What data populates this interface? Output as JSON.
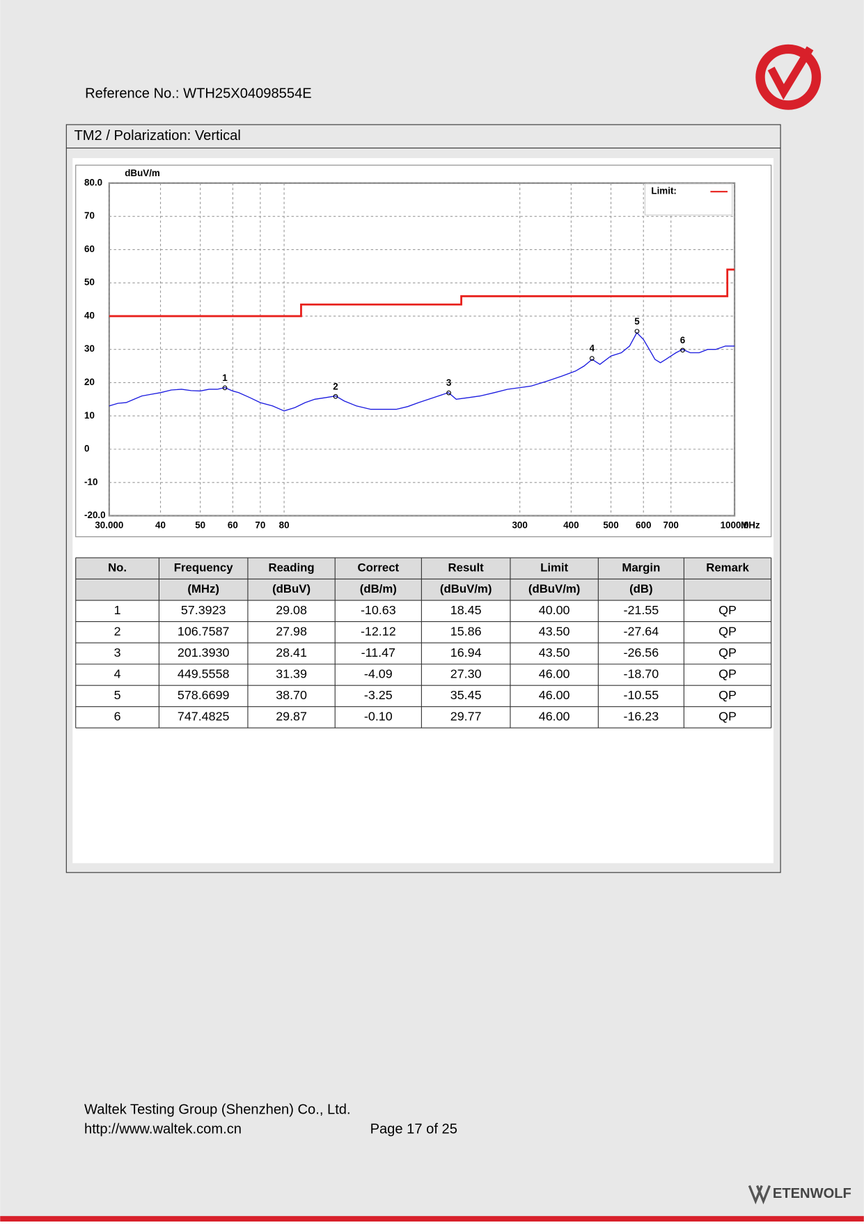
{
  "header": {
    "reference": "Reference No.: WTH25X04098554E"
  },
  "section": {
    "title": "TM2 / Polarization: Vertical"
  },
  "chart_data": {
    "type": "line",
    "ylabel": "dBuV/m",
    "xlabel": "MHz",
    "xscale": "log",
    "grid": true,
    "legend": "top-right",
    "xlim": [
      30,
      1000
    ],
    "ylim": [
      -20,
      80
    ],
    "xticks": [
      {
        "value": 30,
        "label": "30.000"
      },
      40,
      50,
      60,
      70,
      80,
      300,
      400,
      500,
      600,
      700,
      {
        "value": 1000,
        "label": "1000.0"
      }
    ],
    "yticks": [
      {
        "value": 80,
        "label": "80.0"
      },
      70,
      60,
      50,
      40,
      30,
      20,
      10,
      0,
      -10,
      {
        "value": -20,
        "label": "-20.0"
      }
    ],
    "series": [
      {
        "name": "Limit:",
        "color": "#e8201c",
        "x": [
          30,
          88,
          88,
          216,
          216,
          960,
          960,
          1000
        ],
        "values": [
          40,
          40,
          43.5,
          43.5,
          46,
          46,
          54,
          54
        ]
      },
      {
        "color": "#1a1adf",
        "x": [
          30,
          31.5,
          33,
          34.5,
          36,
          38,
          40,
          42.5,
          45,
          47.5,
          50,
          52.5,
          55,
          57.4,
          60,
          62,
          66,
          70,
          75,
          80,
          85,
          90,
          95,
          101,
          106.8,
          112,
          120,
          130,
          140,
          150,
          160,
          170,
          180,
          190,
          201,
          210,
          225,
          240,
          260,
          280,
          300,
          320,
          350,
          380,
          410,
          430,
          450,
          470,
          500,
          530,
          555,
          578,
          600,
          620,
          640,
          660,
          680,
          700,
          720,
          747,
          780,
          820,
          860,
          900,
          950,
          1000
        ],
        "values": [
          13,
          13.8,
          14,
          15,
          16,
          16.5,
          17,
          17.8,
          18,
          17.6,
          17.5,
          18,
          18,
          18.5,
          17.5,
          17,
          15.5,
          14,
          13,
          11.5,
          12.5,
          14,
          15,
          15.5,
          16,
          14.5,
          13,
          12,
          12,
          12,
          12.8,
          14,
          15,
          16,
          17,
          15,
          15.5,
          16,
          17,
          18,
          18.5,
          19,
          20.5,
          22,
          23.5,
          25,
          27,
          25.5,
          28,
          29,
          31,
          35,
          33,
          30,
          27,
          26,
          27,
          28,
          29,
          30,
          29,
          29,
          30,
          30,
          31,
          31
        ]
      }
    ],
    "markers": {
      "labels": [
        "1",
        "2",
        "3",
        "4",
        "5",
        "6"
      ],
      "x": [
        57.3923,
        106.7587,
        201.393,
        449.5558,
        578.6699,
        747.4825
      ],
      "values": [
        18.45,
        15.86,
        16.94,
        27.3,
        35.45,
        29.77
      ]
    }
  },
  "table": {
    "header": [
      "No.",
      "Frequency",
      "Reading",
      "Correct",
      "Result",
      "Limit",
      "Margin",
      "Remark"
    ],
    "units": [
      "(MHz)",
      "(dBuV)",
      "(dB/m)",
      "(dBuV/m)",
      "(dBuV/m)",
      "(dB)"
    ],
    "rows": [
      [
        "1",
        "57.3923",
        "29.08",
        "-10.63",
        "18.45",
        "40.00",
        "-21.55",
        "QP"
      ],
      [
        "2",
        "106.7587",
        "27.98",
        "-12.12",
        "15.86",
        "43.50",
        "-27.64",
        "QP"
      ],
      [
        "3",
        "201.3930",
        "28.41",
        "-11.47",
        "16.94",
        "43.50",
        "-26.56",
        "QP"
      ],
      [
        "4",
        "449.5558",
        "31.39",
        "-4.09",
        "27.30",
        "46.00",
        "-18.70",
        "QP"
      ],
      [
        "5",
        "578.6699",
        "38.70",
        "-3.25",
        "35.45",
        "46.00",
        "-10.55",
        "QP"
      ],
      [
        "6",
        "747.4825",
        "29.87",
        "-0.10",
        "29.77",
        "46.00",
        "-16.23",
        "QP"
      ]
    ]
  },
  "footer": {
    "company": "Waltek Testing Group (Shenzhen) Co., Ltd.",
    "url": "http://www.waltek.com.cn",
    "page": "Page 17 of 25",
    "brand": "ETENWOLF"
  }
}
